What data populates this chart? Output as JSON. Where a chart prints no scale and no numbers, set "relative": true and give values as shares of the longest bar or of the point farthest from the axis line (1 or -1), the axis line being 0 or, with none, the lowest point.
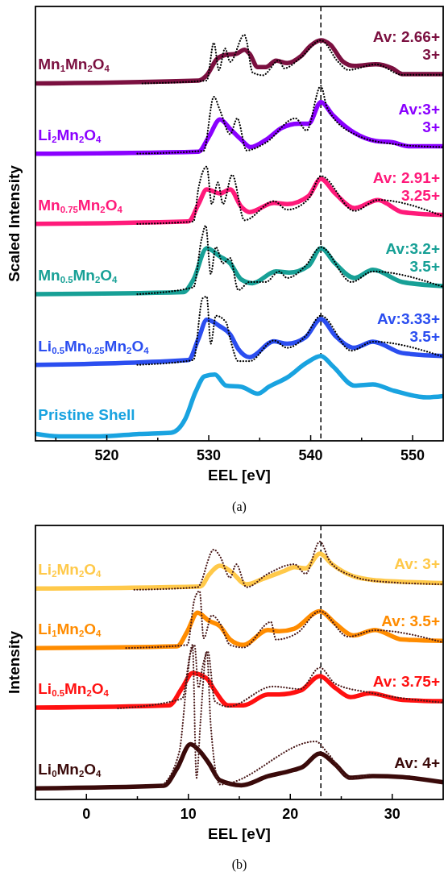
{
  "chart_data": [
    {
      "type": "line",
      "xlabel": "EEL [eV]",
      "ylabel": "Scaled Intensity",
      "subtitle": "(a)",
      "relative": true,
      "xlim": [
        513,
        553
      ],
      "xticks": [
        {
          "value": 515,
          "label": null
        },
        520,
        {
          "value": 525,
          "label": null
        },
        530,
        {
          "value": 535,
          "label": null
        },
        540,
        {
          "value": 545,
          "label": null
        },
        550
      ],
      "ref_lines": [
        {
          "axis": "x",
          "value": 541,
          "line_style": "dashed",
          "color": "#000000"
        }
      ],
      "series": [
        {
          "name": "Mn$_{1}$Mn$_{2}$O$_{4}$",
          "color": "#7b1040",
          "x": [
            513.1,
            529.0,
            529.8,
            530.8,
            531.6,
            532.7,
            533.5,
            534.0,
            534.8,
            535.6,
            536.6,
            537.7,
            539.0,
            540.0,
            541.0,
            541.9,
            543.2,
            544.3,
            546.4,
            548.0,
            549.0,
            553
          ],
          "values": [
            0.88,
            0.887,
            0.9,
            0.94,
            0.95,
            0.953,
            0.963,
            0.953,
            0.92,
            0.92,
            0.936,
            0.93,
            0.946,
            0.973,
            0.986,
            0.976,
            0.933,
            0.923,
            0.927,
            0.917,
            0.903,
            0.903
          ]
        },
        {
          "color": "#000000",
          "line_style": "dotted",
          "x": [
            523.5,
            529.8,
            530.5,
            531.0,
            531.6,
            532.1,
            533.5,
            533.7,
            534.3,
            535.3,
            536.9,
            537.4,
            539.0,
            541.0,
            542.7,
            543.7,
            546.4,
            549.0,
            553
          ],
          "values": [
            0.88,
            0.887,
            0.98,
            0.913,
            0.966,
            0.933,
            1.0,
            0.986,
            0.907,
            0.9,
            0.937,
            0.917,
            0.943,
            0.986,
            0.933,
            0.913,
            0.927,
            0.901,
            0.901
          ]
        },
        {
          "name": "Li$_{2}$Mn$_{2}$O$_{4}$",
          "color": "#8a00ff",
          "x": [
            513.1,
            529.0,
            530.0,
            531.1,
            532.1,
            533.2,
            534.1,
            535.6,
            537.2,
            538.8,
            539.8,
            541.0,
            542.2,
            544.3,
            546.4,
            548.0,
            549.6,
            553
          ],
          "values": [
            0.707,
            0.712,
            0.748,
            0.791,
            0.768,
            0.741,
            0.723,
            0.741,
            0.771,
            0.781,
            0.781,
            0.834,
            0.801,
            0.758,
            0.738,
            0.735,
            0.725,
            0.725
          ]
        },
        {
          "color": "#000000",
          "line_style": "dotted",
          "x": [
            523,
            529.5,
            530.5,
            531.1,
            532.1,
            532.8,
            533.7,
            535.6,
            538.5,
            539.6,
            541.0,
            541.6,
            544.3,
            548.0,
            553
          ],
          "values": [
            0.707,
            0.714,
            0.847,
            0.814,
            0.755,
            0.794,
            0.715,
            0.734,
            0.794,
            0.764,
            0.874,
            0.821,
            0.755,
            0.731,
            0.723
          ]
        },
        {
          "name": "Mn$_{0.75}$Mn$_{2}$O$_{4}$",
          "color": "#ff1a7a",
          "x": [
            513.1,
            528.0,
            529.0,
            529.8,
            531.1,
            532.1,
            533.2,
            534.0,
            536.4,
            537.7,
            539.8,
            541.0,
            542.4,
            544.3,
            546.6,
            549.0,
            553
          ],
          "values": [
            0.534,
            0.54,
            0.583,
            0.619,
            0.609,
            0.619,
            0.576,
            0.563,
            0.586,
            0.583,
            0.603,
            0.645,
            0.609,
            0.573,
            0.593,
            0.563,
            0.556
          ]
        },
        {
          "color": "#000000",
          "line_style": "dotted",
          "x": [
            523,
            528.5,
            529.0,
            529.8,
            530.3,
            530.9,
            531.4,
            532.3,
            533.5,
            536.4,
            537.7,
            539.8,
            541.0,
            544.3,
            546.6,
            553
          ],
          "values": [
            0.534,
            0.54,
            0.623,
            0.675,
            0.583,
            0.636,
            0.583,
            0.655,
            0.543,
            0.59,
            0.569,
            0.596,
            0.652,
            0.566,
            0.593,
            0.553
          ]
        },
        {
          "name": "Mn$_{0.5}$Mn$_{2}$O$_{4}$",
          "color": "#17a096",
          "x": [
            513.1,
            527.5,
            528.5,
            529.8,
            531.1,
            532.1,
            533.2,
            534.3,
            536.6,
            537.9,
            539.8,
            541.0,
            542.4,
            544.3,
            546.1,
            549.0,
            553
          ],
          "values": [
            0.361,
            0.366,
            0.397,
            0.474,
            0.454,
            0.437,
            0.397,
            0.388,
            0.417,
            0.414,
            0.431,
            0.474,
            0.437,
            0.401,
            0.421,
            0.391,
            0.381
          ]
        },
        {
          "color": "#000000",
          "line_style": "dotted",
          "x": [
            523,
            528.5,
            529.3,
            529.7,
            530.2,
            530.7,
            531.4,
            532.1,
            532.9,
            534.0,
            535.6,
            536.9,
            537.7,
            539.5,
            541.0,
            544.0,
            546.1,
            553
          ],
          "values": [
            0.361,
            0.378,
            0.497,
            0.53,
            0.411,
            0.477,
            0.437,
            0.45,
            0.371,
            0.391,
            0.391,
            0.417,
            0.401,
            0.431,
            0.477,
            0.391,
            0.417,
            0.379
          ]
        },
        {
          "name": "Li$_{0.5}$Mn$_{0.25}$Mn$_{2}$O$_{4}$",
          "color": "#2b4ef0",
          "x": [
            513.1,
            528.0,
            529.0,
            529.8,
            531.1,
            532.1,
            532.9,
            534.0,
            536.4,
            537.7,
            539.5,
            541.0,
            542.4,
            544.3,
            546.1,
            549.0,
            553
          ],
          "values": [
            0.187,
            0.199,
            0.252,
            0.298,
            0.282,
            0.262,
            0.226,
            0.206,
            0.245,
            0.239,
            0.255,
            0.3,
            0.259,
            0.229,
            0.244,
            0.216,
            0.209
          ]
        },
        {
          "color": "#000000",
          "line_style": "dotted",
          "x": [
            523,
            528.5,
            529.4,
            529.8,
            530.2,
            530.7,
            531.7,
            532.1,
            532.9,
            534.0,
            536.4,
            537.7,
            539.5,
            541.0,
            544.0,
            546.1,
            553
          ],
          "values": [
            0.187,
            0.199,
            0.351,
            0.355,
            0.239,
            0.308,
            0.292,
            0.252,
            0.196,
            0.196,
            0.247,
            0.229,
            0.258,
            0.308,
            0.222,
            0.244,
            0.207
          ]
        },
        {
          "name": "Pristine Shell",
          "color": "#19a3e0",
          "x": [
            513.1,
            515.3,
            519.3,
            523.2,
            526.3,
            527.7,
            528.7,
            529.6,
            530.6,
            531.7,
            533.2,
            534.8,
            535.9,
            537.7,
            539.6,
            541.0,
            542.2,
            544.3,
            546.1,
            548.2,
            551.4,
            553
          ],
          "values": [
            0.017,
            0.011,
            0.011,
            0.017,
            0.02,
            0.054,
            0.12,
            0.159,
            0.163,
            0.136,
            0.133,
            0.116,
            0.133,
            0.156,
            0.192,
            0.209,
            0.183,
            0.136,
            0.139,
            0.123,
            0.107,
            0.11
          ]
        }
      ],
      "annotations": [
        "Av: 2.66+",
        "3+",
        "Av:3+",
        "3+",
        "Av: 2.91+",
        "3.25+",
        "Av:3.2+",
        "3.5+",
        "Av:3.33+",
        "3.5+"
      ]
    },
    {
      "type": "line",
      "xlabel": "EEL [eV]",
      "ylabel": "Intensity",
      "subtitle": "(b)",
      "relative": true,
      "xlim": [
        -5,
        35
      ],
      "xticks": [
        0,
        {
          "value": 5,
          "label": null
        },
        10,
        {
          "value": 15,
          "label": null
        },
        20,
        {
          "value": 25,
          "label": null
        },
        30
      ],
      "ref_lines": [
        {
          "axis": "x",
          "value": 23,
          "line_style": "dashed",
          "color": "#000000"
        }
      ],
      "series": [
        {
          "name": "Li$_{2}$Mn$_{2}$O$_{4}$",
          "color": "#ffc94a",
          "x": [
            -4.9,
            11.2,
            12.0,
            13.1,
            14.1,
            15.7,
            17.3,
            19.4,
            20.4,
            21.5,
            22.9,
            24.1,
            26.2,
            28.6,
            31.0,
            34.9
          ],
          "values": [
            0.818,
            0.826,
            0.87,
            0.906,
            0.886,
            0.834,
            0.855,
            0.886,
            0.901,
            0.896,
            0.953,
            0.912,
            0.865,
            0.849,
            0.844,
            0.839
          ]
        },
        {
          "color": "#4a1a1a",
          "line_style": "dotted",
          "x": [
            4.7,
            10.9,
            12.5,
            13.1,
            14.1,
            14.7,
            15.7,
            17.8,
            20.4,
            21.5,
            22.9,
            23.9,
            26.2,
            28.3,
            34.9
          ],
          "values": [
            0.813,
            0.823,
            0.969,
            0.943,
            0.86,
            0.912,
            0.823,
            0.875,
            0.912,
            0.875,
            1.0,
            0.922,
            0.865,
            0.847,
            0.834
          ]
        },
        {
          "name": "Li$_{1}$Mn$_{2}$O$_{4}$",
          "color": "#ff8c00",
          "x": [
            -4.9,
            8.9,
            9.9,
            10.9,
            12.0,
            13.1,
            14.1,
            15.4,
            17.8,
            18.9,
            20.4,
            22.9,
            24.4,
            26.2,
            28.3,
            31.0,
            34.9
          ],
          "values": [
            0.587,
            0.594,
            0.652,
            0.724,
            0.693,
            0.672,
            0.62,
            0.599,
            0.657,
            0.652,
            0.662,
            0.73,
            0.683,
            0.636,
            0.657,
            0.62,
            0.615
          ]
        },
        {
          "color": "#4a1a1a",
          "line_style": "dotted",
          "x": [
            3.9,
            9.9,
            10.6,
            11.1,
            11.5,
            12.3,
            13.1,
            14.1,
            15.4,
            18.1,
            18.6,
            20.7,
            22.9,
            25.7,
            28.3,
            34.9
          ],
          "values": [
            0.587,
            0.599,
            0.776,
            0.808,
            0.625,
            0.714,
            0.683,
            0.599,
            0.589,
            0.688,
            0.62,
            0.646,
            0.73,
            0.631,
            0.656,
            0.61
          ]
        },
        {
          "name": "Li$_{0.5}$Mn$_{2}$O$_{4}$",
          "color": "#ff1010",
          "x": [
            -4.9,
            8.1,
            9.4,
            10.4,
            11.8,
            12.6,
            13.9,
            15.4,
            17.8,
            18.9,
            21.0,
            22.9,
            24.4,
            25.9,
            27.8,
            31.0,
            34.9
          ],
          "values": [
            0.356,
            0.365,
            0.433,
            0.49,
            0.469,
            0.422,
            0.365,
            0.365,
            0.407,
            0.407,
            0.422,
            0.478,
            0.433,
            0.397,
            0.412,
            0.386,
            0.381
          ]
        },
        {
          "color": "#4a1a1a",
          "line_style": "dotted",
          "x": [
            3.1,
            9.4,
            10.2,
            10.6,
            11.0,
            11.4,
            11.9,
            12.6,
            13.9,
            18.3,
            21.0,
            22.9,
            24.4,
            27.8,
            34.9
          ],
          "values": [
            0.353,
            0.391,
            0.568,
            0.599,
            0.433,
            0.516,
            0.574,
            0.381,
            0.36,
            0.438,
            0.428,
            0.511,
            0.449,
            0.414,
            0.376
          ]
        },
        {
          "name": "Li$_{0}$Mn$_{2}$O$_{4}$",
          "color": "#3a0a0a",
          "x": [
            -4.9,
            7.6,
            8.9,
            10.2,
            11.2,
            12.0,
            13.1,
            15.2,
            17.8,
            19.9,
            21.2,
            22.9,
            24.4,
            25.9,
            28.1,
            31.0,
            34.9
          ],
          "values": [
            0.043,
            0.053,
            0.121,
            0.214,
            0.183,
            0.141,
            0.074,
            0.055,
            0.09,
            0.11,
            0.126,
            0.178,
            0.136,
            0.084,
            0.091,
            0.087,
            0.067
          ]
        },
        {
          "color": "#4a1a1a",
          "line_style": "dotted",
          "x": [
            7.3,
            9.1,
            9.9,
            10.4,
            10.8,
            11.2,
            11.8,
            12.2,
            13.1,
            22.5,
            23.6,
            25.9,
            27.8
          ],
          "values": [
            0.048,
            0.183,
            0.475,
            0.599,
            0.084,
            0.308,
            0.574,
            0.287,
            0.058,
            0.225,
            0.183,
            0.084,
            0.095
          ]
        }
      ],
      "annotations": [
        "Av: 3+",
        "Av: 3.5+",
        "Av: 3.75+",
        "Av: 4+"
      ]
    }
  ]
}
